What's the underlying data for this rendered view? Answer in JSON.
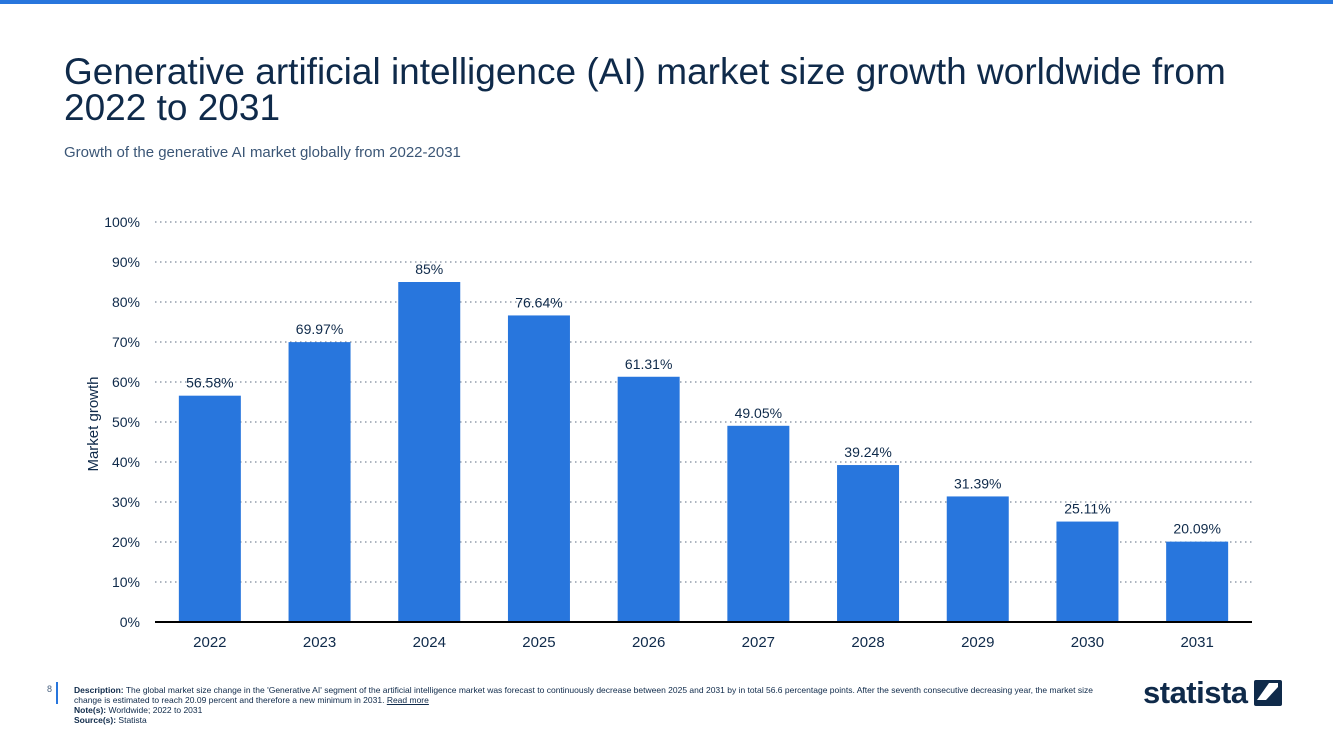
{
  "page": {
    "title": "Generative artificial intelligence (AI) market size growth worldwide from 2022 to 2031",
    "subtitle": "Growth of the generative AI market globally from 2022-2031",
    "slide_number": "8",
    "brand": "statista",
    "accent_color": "#2876dd"
  },
  "footer": {
    "description_label": "Description:",
    "description": "The global market size change in the 'Generative AI' segment of the artificial intelligence market was forecast to continuously decrease between 2025 and 2031 by in total 56.6 percentage points. After the seventh consecutive decreasing year, the market size change is estimated to reach 20.09 percent and therefore a new minimum in 2031.",
    "read_more": "Read more",
    "notes_label": "Note(s):",
    "notes": "Worldwide; 2022 to 2031",
    "sources_label": "Source(s):",
    "sources": "Statista"
  },
  "chart_data": {
    "type": "bar",
    "categories": [
      "2022",
      "2023",
      "2024",
      "2025",
      "2026",
      "2027",
      "2028",
      "2029",
      "2030",
      "2031"
    ],
    "values": [
      56.58,
      69.97,
      85,
      76.64,
      61.31,
      49.05,
      39.24,
      31.39,
      25.11,
      20.09
    ],
    "value_labels": [
      "56.58%",
      "69.97%",
      "85%",
      "76.64%",
      "61.31%",
      "49.05%",
      "39.24%",
      "31.39%",
      "25.11%",
      "20.09%"
    ],
    "ylabel": "Market growth",
    "xlabel": "",
    "ylim": [
      0,
      100
    ],
    "yticks": [
      0,
      10,
      20,
      30,
      40,
      50,
      60,
      70,
      80,
      90,
      100
    ],
    "ytick_labels": [
      "0%",
      "10%",
      "20%",
      "30%",
      "40%",
      "50%",
      "60%",
      "70%",
      "80%",
      "90%",
      "100%"
    ],
    "grid": "dotted-horizontal",
    "bar_color": "#2876dd"
  }
}
